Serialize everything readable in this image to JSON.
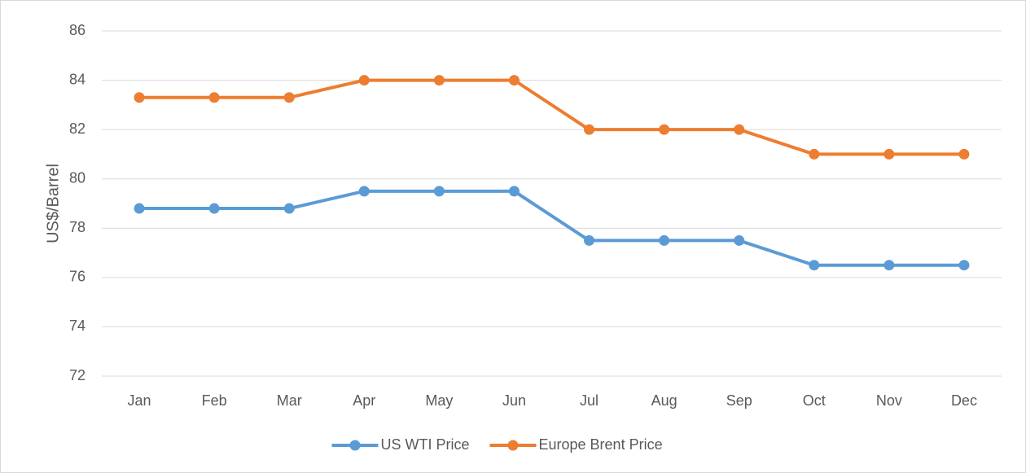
{
  "chart_data": {
    "type": "line",
    "y_label": "US$/Barrel",
    "categories": [
      "Jan",
      "Feb",
      "Mar",
      "Apr",
      "May",
      "Jun",
      "Jul",
      "Aug",
      "Sep",
      "Oct",
      "Nov",
      "Dec"
    ],
    "series": [
      {
        "name": "US WTI Price",
        "color": "#5b9bd5",
        "values": [
          78.8,
          78.8,
          78.8,
          79.5,
          79.5,
          79.5,
          77.5,
          77.5,
          77.5,
          76.5,
          76.5,
          76.5
        ]
      },
      {
        "name": "Europe Brent Price",
        "color": "#ed7d31",
        "values": [
          83.3,
          83.3,
          83.3,
          84,
          84,
          84,
          82,
          82,
          82,
          81,
          81,
          81
        ]
      }
    ],
    "ylim": [
      72,
      86
    ],
    "yticks": [
      72,
      74,
      76,
      78,
      80,
      82,
      84,
      86
    ],
    "grid": true,
    "legend": "bottom"
  }
}
